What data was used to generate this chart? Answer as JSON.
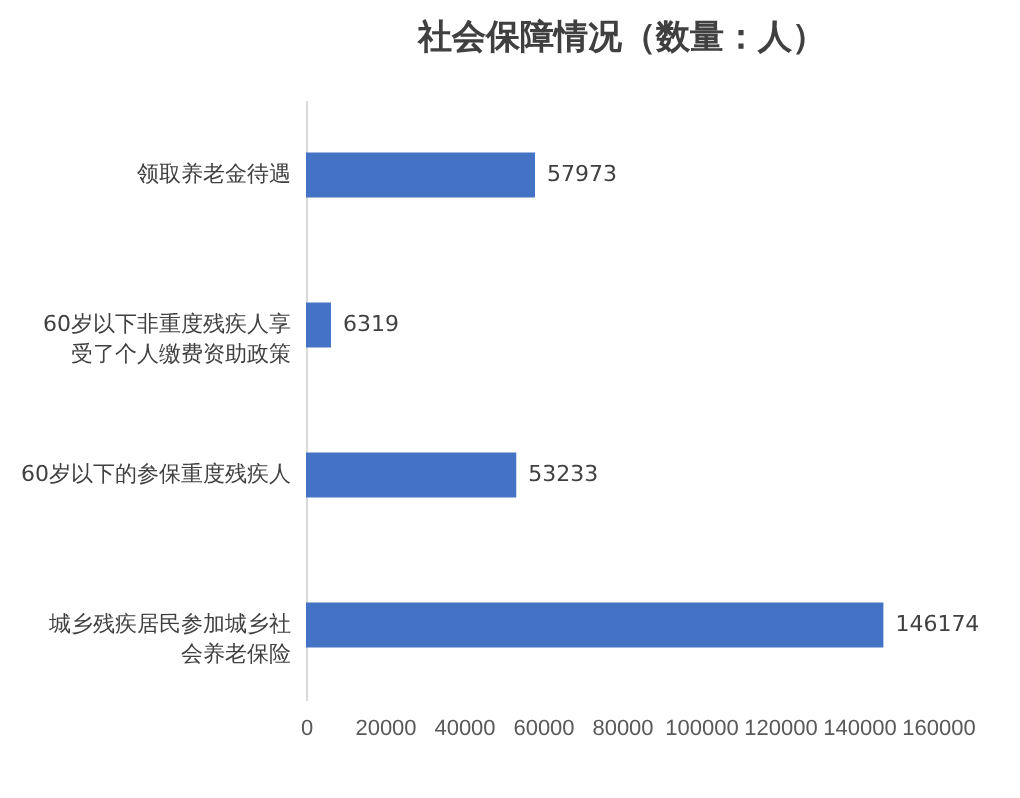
{
  "chart_data": {
    "type": "bar",
    "orientation": "horizontal",
    "title": "社会保障情况（数量：人）",
    "categories": [
      "领取养老金待遇",
      "60岁以下非重度残疾人享受了个人缴费资助政策",
      "60岁以下的参保重度残疾人",
      "城乡残疾居民参加城乡社会养老保险"
    ],
    "values": [
      57973,
      6319,
      53233,
      146174
    ],
    "color": "#4472c4",
    "xlim": [
      0,
      160000
    ],
    "xticks": [
      0,
      20000,
      40000,
      60000,
      80000,
      100000,
      120000,
      140000,
      160000
    ],
    "data_labels": true,
    "grid": false
  }
}
